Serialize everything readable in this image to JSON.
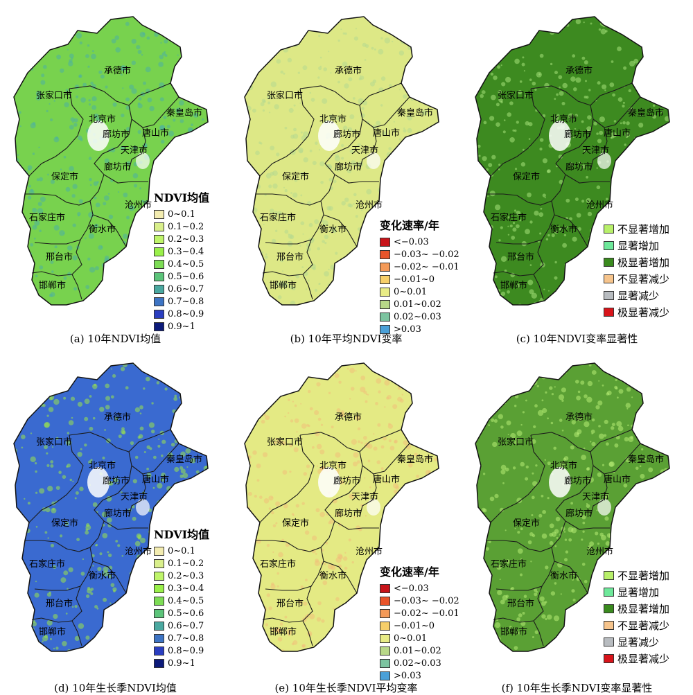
{
  "cities": [
    "承德市",
    "张家口市",
    "北京市",
    "秦皇岛市",
    "廊坊市",
    "唐山市",
    "天津市",
    "廊坊市",
    "保定市",
    "沧州市",
    "石家庄市",
    "衡水市",
    "邢台市",
    "邯郸市"
  ],
  "legends": {
    "ndvi": {
      "title": "NDVI均值",
      "items": [
        {
          "label": "0~0.1",
          "color": "#f3ecb0"
        },
        {
          "label": "0.1~0.2",
          "color": "#d9ef8b"
        },
        {
          "label": "0.2~0.3",
          "color": "#bff56a"
        },
        {
          "label": "0.3~0.4",
          "color": "#9af04a"
        },
        {
          "label": "0.4~0.5",
          "color": "#7ddc55"
        },
        {
          "label": "0.5~0.6",
          "color": "#5cc47a"
        },
        {
          "label": "0.6~0.7",
          "color": "#4aa8a0"
        },
        {
          "label": "0.7~0.8",
          "color": "#3d74c4"
        },
        {
          "label": "0.8~0.9",
          "color": "#2a3ec0"
        },
        {
          "label": "0.9~1",
          "color": "#0c1a7a"
        }
      ]
    },
    "rate": {
      "title": "变化速率/年",
      "items": [
        {
          "label": "<−0.03",
          "color": "#c8141a"
        },
        {
          "label": "−0.03~ −0.02",
          "color": "#e8542a"
        },
        {
          "label": "−0.02~ −0.01",
          "color": "#f49a58"
        },
        {
          "label": "−0.01~0",
          "color": "#f6cf6a"
        },
        {
          "label": "0~0.01",
          "color": "#e8ec86"
        },
        {
          "label": "0.01~0.02",
          "color": "#b8d888"
        },
        {
          "label": "0.02~0.03",
          "color": "#7cc4a0"
        },
        {
          "label": ">0.03",
          "color": "#4aa0d8"
        }
      ]
    },
    "sig": {
      "title": "",
      "items": [
        {
          "label": "不显著增加",
          "color": "#b8f06a"
        },
        {
          "label": "显著增加",
          "color": "#6ee89a"
        },
        {
          "label": "极显著增加",
          "color": "#3a8a1e"
        },
        {
          "label": "不显著减少",
          "color": "#f6c48c"
        },
        {
          "label": "显著减少",
          "color": "#b8bcc0"
        },
        {
          "label": "极显著减少",
          "color": "#d8141a"
        }
      ]
    }
  },
  "panels": [
    {
      "caption": "(a) 10年NDVI均值",
      "fill": "#78d24e",
      "accent": "#4cb0a0",
      "legend": "ndvi"
    },
    {
      "caption": "(b) 10年平均NDVI变率",
      "fill": "#dde886",
      "accent": "#b4d890",
      "legend": "rate"
    },
    {
      "caption": "(c) 10年NDVI变率显著性",
      "fill": "#3d8a20",
      "accent": "#a6e27a",
      "legend": "sig"
    },
    {
      "caption": "(d) 10年生长季NDVI均值",
      "fill": "#3a6ad0",
      "accent": "#9ae34a",
      "legend": "ndvi"
    },
    {
      "caption": "(e) 10年生长季NDVI平均变率",
      "fill": "#e4ea84",
      "accent": "#f0c07a",
      "legend": "rate"
    },
    {
      "caption": "(f) 10年生长季NDVI变率显著性",
      "fill": "#5aa034",
      "accent": "#b6ec74",
      "legend": "sig"
    }
  ]
}
